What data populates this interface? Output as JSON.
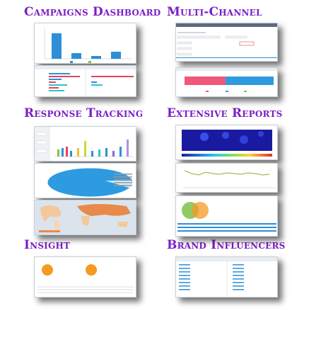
{
  "sections": {
    "campaigns": {
      "title": "Campaigns Dashboard"
    },
    "multichannel": {
      "title": "Multi-Channel"
    },
    "response": {
      "title": "Response Tracking"
    },
    "reports": {
      "title": "Extensive Reports"
    },
    "insight": {
      "title": "Insight"
    },
    "brand": {
      "title": "Brand Influencers"
    }
  },
  "colors": {
    "heading": "#7a1fc4",
    "bar_blue": "#2e8fd6",
    "bar_red": "#e5455a",
    "pie_blue": "#2e9be0",
    "orange": "#f59a23",
    "green": "#7fc24a"
  }
}
